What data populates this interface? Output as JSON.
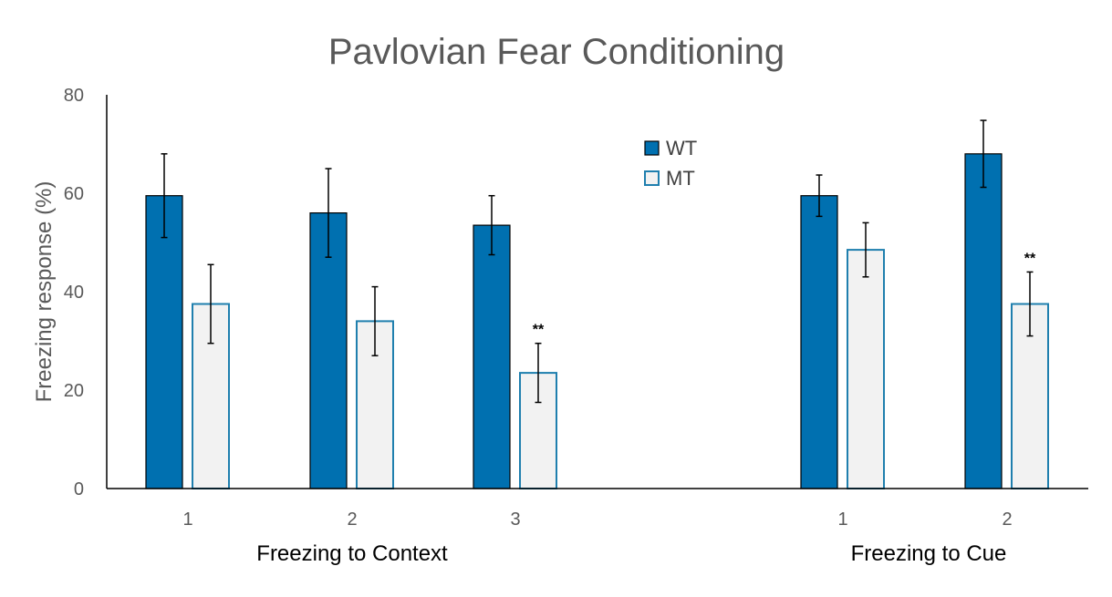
{
  "chart_data": {
    "type": "bar",
    "title": "Pavlovian Fear Conditioning",
    "ylabel": "Freezing response (%)",
    "ylim": [
      0,
      80
    ],
    "yticks": [
      "0",
      "20",
      "40",
      "60",
      "80"
    ],
    "groups": [
      {
        "label": "Freezing to Context",
        "categories": [
          "1",
          "2",
          "3"
        ]
      },
      {
        "label": "Freezing to Cue",
        "categories": [
          "1",
          "2"
        ]
      }
    ],
    "series": [
      {
        "name": "WT",
        "color": "#0070b0",
        "values": [
          59.5,
          56,
          53.5,
          59.5,
          68
        ],
        "errors": [
          8.5,
          9,
          6,
          4.2,
          6.8
        ]
      },
      {
        "name": "MT",
        "color": "#f2f2f2",
        "stroke": "#1f7fae",
        "values": [
          37.5,
          34,
          23.5,
          48.5,
          37.5
        ],
        "errors": [
          8,
          7,
          6,
          5.5,
          6.5
        ]
      }
    ],
    "annotations": [
      {
        "series": "MT",
        "index": 2,
        "text": "**"
      },
      {
        "series": "MT",
        "index": 4,
        "text": "**"
      }
    ],
    "legend": "top-center",
    "grid": false
  }
}
